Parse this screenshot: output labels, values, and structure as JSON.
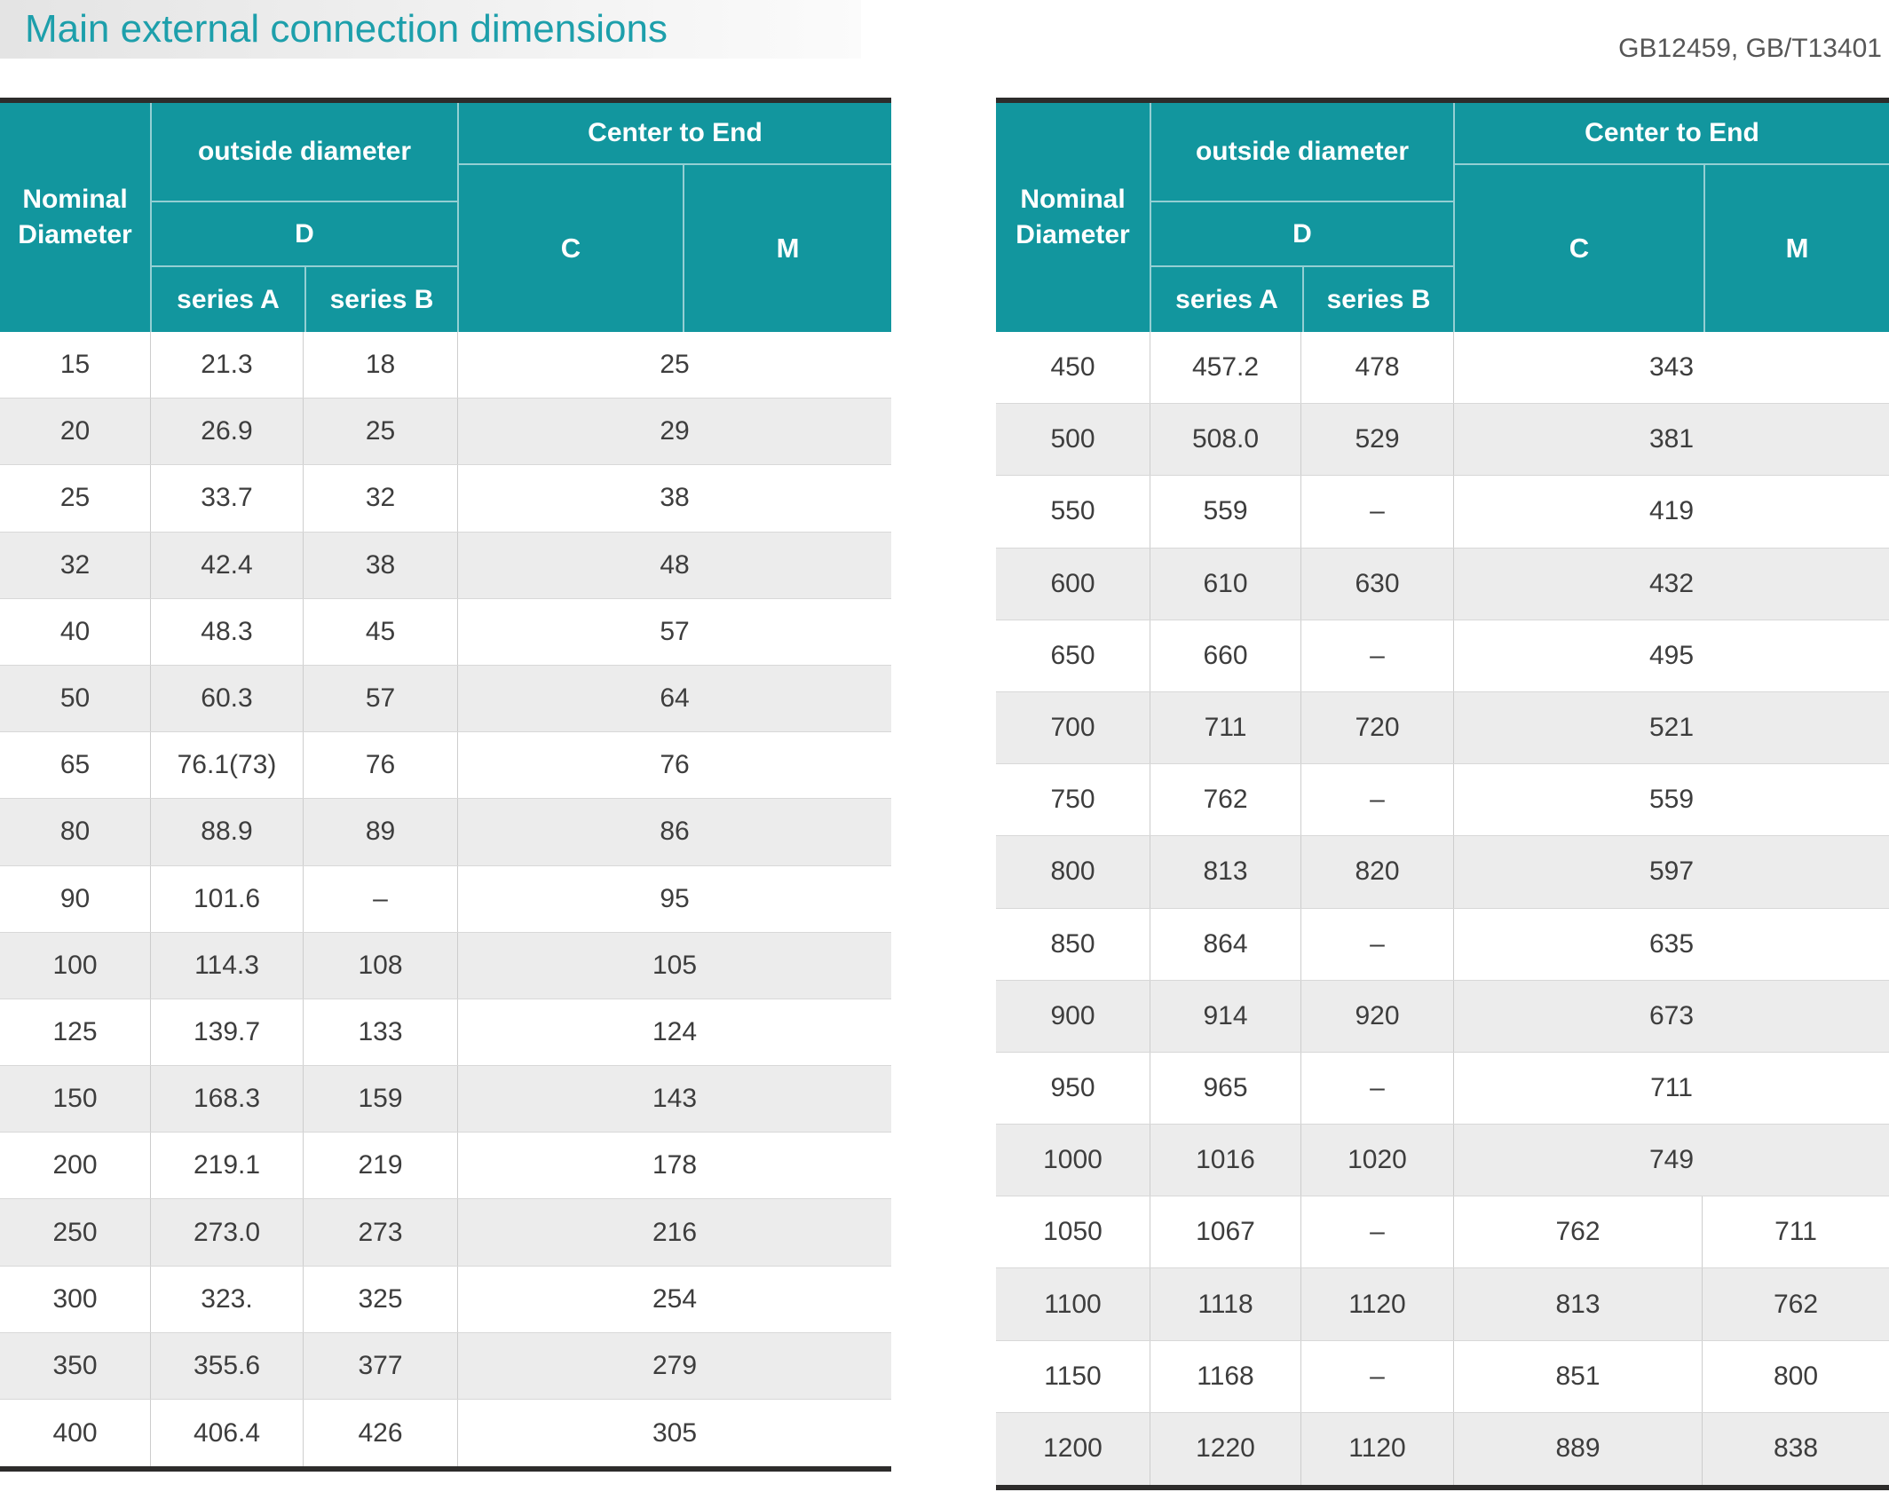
{
  "page": {
    "title": "Main external connection dimensions",
    "standards": "GB12459, GB/T13401"
  },
  "colors": {
    "teal": "#12969e",
    "title-teal": "#1d9fab",
    "dark-border": "#2d2c2b",
    "stripe": "#ececec",
    "row-line": "#d8d8d8",
    "col-line": "#cdcdcd",
    "cell-text": "#3d3d3d",
    "standards-text": "#565656",
    "titlebar-left": "#e4e4e4",
    "titlebar-right": "#fbfbfb",
    "header-line": "rgba(255,255,255,0.55)"
  },
  "header": {
    "nominal_diameter": "Nominal Diameter",
    "outside_diameter": "outside diameter",
    "d_label": "D",
    "series_a": "series A",
    "series_b": "series B",
    "center_to_end": "Center to End",
    "c_label": "C",
    "m_label": "M"
  },
  "left_table": {
    "rows": [
      {
        "nd": "15",
        "a": "21.3",
        "b": "18",
        "cm": "25"
      },
      {
        "nd": "20",
        "a": "26.9",
        "b": "25",
        "cm": "29"
      },
      {
        "nd": "25",
        "a": "33.7",
        "b": "32",
        "cm": "38"
      },
      {
        "nd": "32",
        "a": "42.4",
        "b": "38",
        "cm": "48"
      },
      {
        "nd": "40",
        "a": "48.3",
        "b": "45",
        "cm": "57"
      },
      {
        "nd": "50",
        "a": "60.3",
        "b": "57",
        "cm": "64"
      },
      {
        "nd": "65",
        "a": "76.1(73)",
        "b": "76",
        "cm": "76"
      },
      {
        "nd": "80",
        "a": "88.9",
        "b": "89",
        "cm": "86"
      },
      {
        "nd": "90",
        "a": "101.6",
        "b": "–",
        "cm": "95"
      },
      {
        "nd": "100",
        "a": "114.3",
        "b": "108",
        "cm": "105"
      },
      {
        "nd": "125",
        "a": "139.7",
        "b": "133",
        "cm": "124"
      },
      {
        "nd": "150",
        "a": "168.3",
        "b": "159",
        "cm": "143"
      },
      {
        "nd": "200",
        "a": "219.1",
        "b": "219",
        "cm": "178"
      },
      {
        "nd": "250",
        "a": "273.0",
        "b": "273",
        "cm": "216"
      },
      {
        "nd": "300",
        "a": "323.",
        "b": "325",
        "cm": "254"
      },
      {
        "nd": "350",
        "a": "355.6",
        "b": "377",
        "cm": "279"
      },
      {
        "nd": "400",
        "a": "406.4",
        "b": "426",
        "cm": "305"
      }
    ]
  },
  "right_table": {
    "rows": [
      {
        "nd": "450",
        "a": "457.2",
        "b": "478",
        "cm": "343"
      },
      {
        "nd": "500",
        "a": "508.0",
        "b": "529",
        "cm": "381"
      },
      {
        "nd": "550",
        "a": "559",
        "b": "–",
        "cm": "419"
      },
      {
        "nd": "600",
        "a": "610",
        "b": "630",
        "cm": "432"
      },
      {
        "nd": "650",
        "a": "660",
        "b": "–",
        "cm": "495"
      },
      {
        "nd": "700",
        "a": "711",
        "b": "720",
        "cm": "521"
      },
      {
        "nd": "750",
        "a": "762",
        "b": "–",
        "cm": "559"
      },
      {
        "nd": "800",
        "a": "813",
        "b": "820",
        "cm": "597"
      },
      {
        "nd": "850",
        "a": "864",
        "b": "–",
        "cm": "635"
      },
      {
        "nd": "900",
        "a": "914",
        "b": "920",
        "cm": "673"
      },
      {
        "nd": "950",
        "a": "965",
        "b": "–",
        "cm": "711"
      },
      {
        "nd": "1000",
        "a": "1016",
        "b": "1020",
        "cm": "749"
      },
      {
        "nd": "1050",
        "a": "1067",
        "b": "–",
        "c": "762",
        "m": "711"
      },
      {
        "nd": "1100",
        "a": "1118",
        "b": "1120",
        "c": "813",
        "m": "762"
      },
      {
        "nd": "1150",
        "a": "1168",
        "b": "–",
        "c": "851",
        "m": "800"
      },
      {
        "nd": "1200",
        "a": "1220",
        "b": "1120",
        "c": "889",
        "m": "838"
      }
    ]
  }
}
